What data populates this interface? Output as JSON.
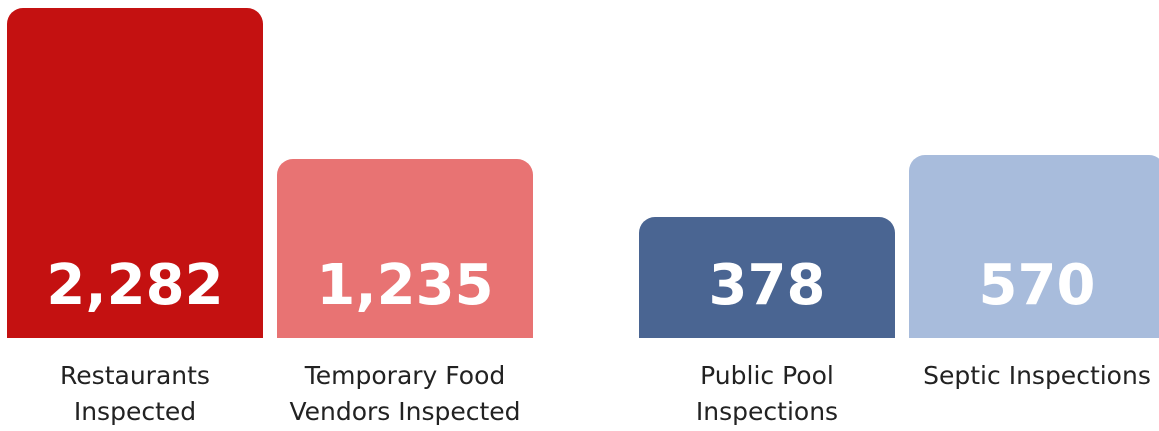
{
  "chart_data": [
    {
      "type": "bar",
      "categories": [
        "Restaurants Inspected",
        "Temporary Food Vendors Inspected"
      ],
      "values": [
        2282,
        1235
      ],
      "value_labels": [
        "2,282",
        "1,235"
      ],
      "colors": [
        "#c41111",
        "#e87373"
      ]
    },
    {
      "type": "bar",
      "categories": [
        "Public Pool Inspections",
        "Septic Inspections"
      ],
      "values": [
        378,
        570
      ],
      "colors": [
        "#4a6592",
        "#a8bcdc"
      ]
    }
  ]
}
